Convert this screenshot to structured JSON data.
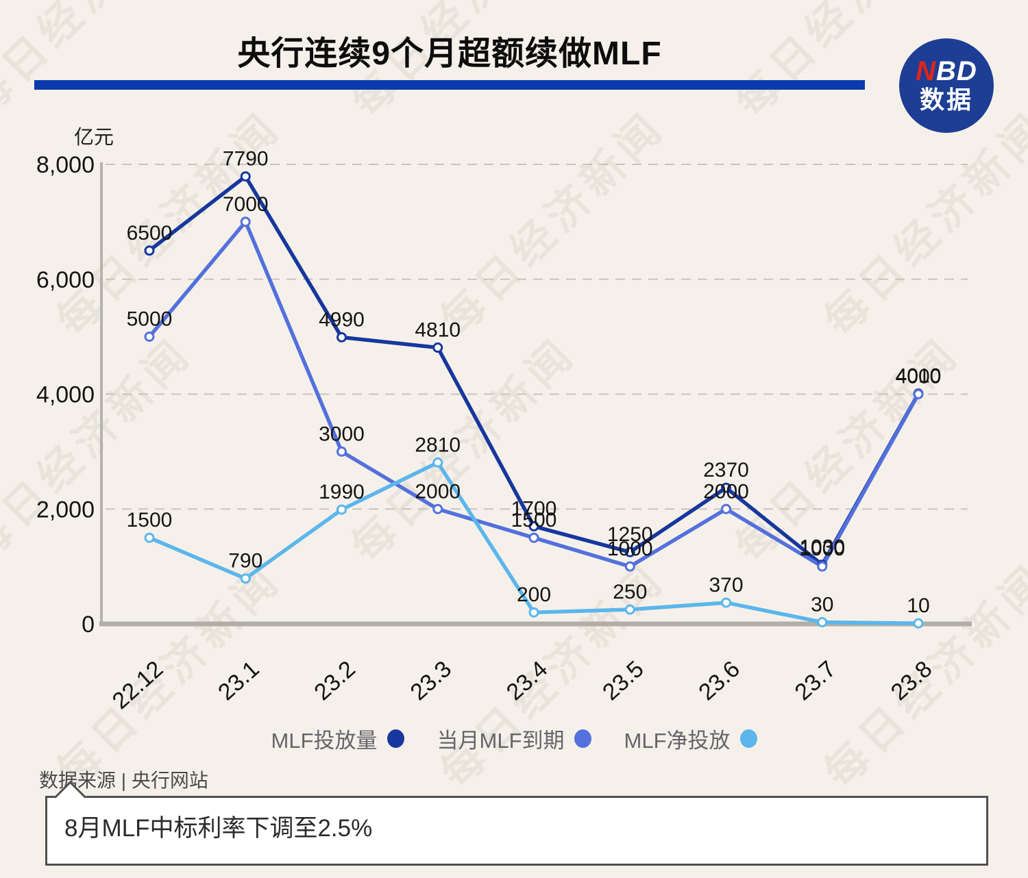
{
  "header": {
    "title": "央行连续9个月超额续做MLF",
    "logo": {
      "line1_red": "N",
      "line1_rest": "BD",
      "line2": "数据"
    }
  },
  "chart_data": {
    "type": "line",
    "title": "央行连续9个月超额续做MLF",
    "unit_label": "亿元",
    "categories": [
      "22.12",
      "23.1",
      "23.2",
      "23.3",
      "23.4",
      "23.5",
      "23.6",
      "23.7",
      "23.8"
    ],
    "series": [
      {
        "name": "MLF投放量",
        "color": "#17379e",
        "values": [
          6500,
          7790,
          4990,
          4810,
          1700,
          1250,
          2370,
          1030,
          4010
        ]
      },
      {
        "name": "当月MLF到期",
        "color": "#5470dc",
        "values": [
          5000,
          7000,
          3000,
          2000,
          1500,
          1000,
          2000,
          1000,
          4000
        ]
      },
      {
        "name": "MLF净投放",
        "color": "#5cb6ec",
        "values": [
          1500,
          790,
          1990,
          2810,
          200,
          250,
          370,
          30,
          10
        ]
      }
    ],
    "ylim": [
      0,
      8000
    ],
    "yticks": [
      0,
      2000,
      4000,
      6000,
      8000
    ],
    "ytick_labels": [
      "0",
      "2,000",
      "4,000",
      "6,000",
      "8,000"
    ],
    "grid": true,
    "legend_position": "bottom"
  },
  "colors": {
    "background": "#f5f1ea",
    "title_bar": "#0b3aac",
    "logo_circle": "#1d3e94",
    "logo_n": "#e1251b",
    "gridline": "#c9c4bb",
    "axis": "#b1aea8",
    "label_text": "#141414"
  },
  "footer": {
    "source": "数据来源 | 央行网站",
    "callout": "8月MLF中标利率下调至2.5%"
  },
  "watermark": {
    "text": "每日经济新闻"
  }
}
